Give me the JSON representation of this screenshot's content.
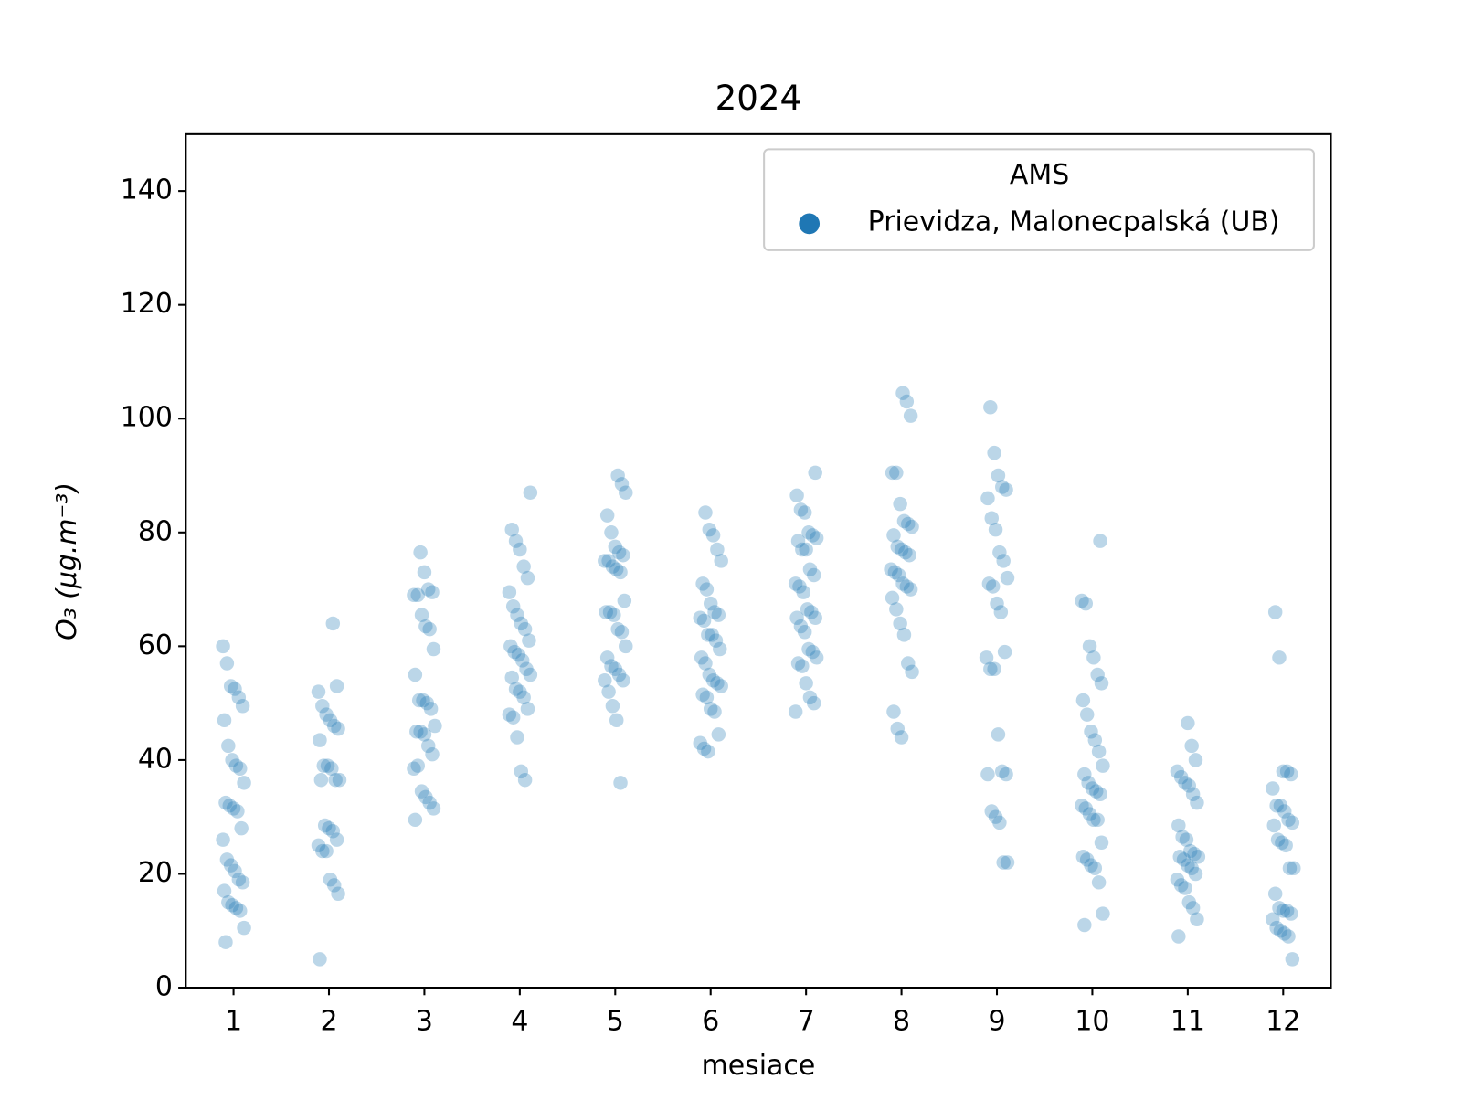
{
  "chart_data": {
    "type": "strip",
    "title": "2024",
    "xlabel": "mesiace",
    "ylabel": "O₃   (μg.m⁻³)",
    "categories": [
      "1",
      "2",
      "3",
      "4",
      "5",
      "6",
      "7",
      "8",
      "9",
      "10",
      "11",
      "12"
    ],
    "ylim": [
      0,
      150
    ],
    "yticks": [
      0,
      20,
      40,
      60,
      80,
      100,
      120,
      140
    ],
    "legend": {
      "title": "AMS",
      "loc": "upper right"
    },
    "series": [
      {
        "name": "Prievidza, Malonecpalská (UB)",
        "color": "#1f77b4",
        "values": [
          [
            60,
            57,
            53,
            52.5,
            51,
            49.5,
            47,
            42.5,
            40,
            39,
            38.5,
            36,
            32.5,
            32,
            31.5,
            31,
            28,
            26,
            22.5,
            21.5,
            20.5,
            19,
            18.5,
            17,
            15,
            14.5,
            14,
            13.5,
            10.5,
            8
          ],
          [
            64,
            53,
            52,
            49.5,
            48,
            47,
            46,
            45.5,
            43.5,
            39,
            39,
            38.5,
            36.5,
            36.5,
            36.5,
            28.5,
            28,
            27.5,
            26,
            25,
            24,
            24,
            19,
            18,
            16.5,
            5
          ],
          [
            76.5,
            73,
            70,
            69.5,
            69,
            69,
            65.5,
            63.5,
            63,
            59.5,
            55,
            50.5,
            50.5,
            50,
            49,
            46,
            45,
            45,
            44.5,
            42.5,
            41,
            38.5,
            39,
            34.5,
            33.5,
            32.5,
            31.5,
            29.5
          ],
          [
            87,
            80.5,
            78.5,
            77,
            74,
            72,
            69.5,
            67,
            65.5,
            64,
            63,
            61,
            60,
            59,
            58.5,
            57.5,
            56,
            55,
            54.5,
            52.5,
            52,
            51,
            49,
            48,
            47.5,
            44,
            38,
            36.5
          ],
          [
            90,
            88.5,
            87,
            83,
            80,
            77.5,
            76.5,
            76,
            75,
            75,
            74,
            73.5,
            73,
            68,
            66,
            66,
            65.5,
            63,
            62.5,
            60,
            58,
            56.5,
            56,
            55,
            54,
            54,
            52,
            49.5,
            47,
            36
          ],
          [
            83.5,
            80.5,
            79.5,
            77,
            75,
            71,
            70,
            67.5,
            66,
            65.5,
            65,
            64.5,
            62,
            62,
            61,
            59.5,
            58,
            57,
            55,
            54,
            53.5,
            53,
            51.5,
            51,
            49,
            48.5,
            44.5,
            43,
            42,
            41.5
          ],
          [
            90.5,
            86.5,
            84,
            83.5,
            80,
            79.5,
            79,
            78.5,
            77,
            77,
            73.5,
            72.5,
            71,
            70.5,
            69.5,
            66.5,
            66,
            65,
            65,
            63.5,
            62.5,
            59.5,
            59,
            58,
            57,
            56.5,
            53.5,
            51,
            50,
            48.5
          ],
          [
            104.5,
            103,
            100.5,
            90.5,
            90.5,
            85,
            82,
            81.5,
            81,
            79.5,
            77.5,
            77,
            76.5,
            76,
            73.5,
            73,
            72.5,
            71,
            70.5,
            70,
            68.5,
            66.5,
            64,
            62,
            57,
            55.5,
            48.5,
            45.5,
            44
          ],
          [
            102,
            94,
            90,
            88,
            87.5,
            86,
            82.5,
            80.5,
            76.5,
            75,
            72,
            71,
            70.5,
            67.5,
            66,
            59,
            58,
            56,
            56,
            44.5,
            38,
            37.5,
            37.5,
            31,
            30,
            29,
            22,
            22
          ],
          [
            78.5,
            68,
            67.5,
            60,
            58,
            55,
            53.5,
            50.5,
            48,
            45,
            43.5,
            41.5,
            39,
            37.5,
            36,
            35,
            34.5,
            34,
            32,
            31.5,
            30.5,
            29.5,
            29.5,
            25.5,
            23,
            22.5,
            21.5,
            21,
            18.5,
            13,
            11
          ],
          [
            46.5,
            42.5,
            40,
            38,
            37,
            36,
            35.5,
            34,
            32.5,
            28.5,
            26.5,
            26,
            24,
            23.5,
            23,
            23,
            22.5,
            21.5,
            21,
            20,
            19,
            18,
            17.5,
            15,
            14,
            12,
            9
          ],
          [
            66,
            58,
            38,
            38,
            37.5,
            35,
            32,
            32,
            31,
            29.5,
            29,
            28.5,
            26,
            25.5,
            25,
            21,
            21,
            16.5,
            14,
            13.5,
            13.5,
            13,
            12,
            10.5,
            10,
            9.5,
            9,
            5
          ]
        ]
      }
    ]
  }
}
